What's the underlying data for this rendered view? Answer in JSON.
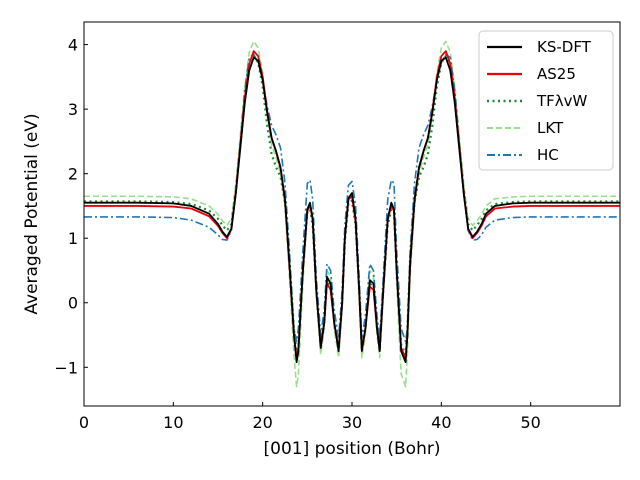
{
  "chart_data": {
    "type": "line",
    "title": "",
    "xlabel": "[001] position (Bohr)",
    "ylabel": "Averaged Potential (eV)",
    "xlim": [
      0,
      60
    ],
    "ylim": [
      -1.6,
      4.35
    ],
    "xticks": [
      0,
      10,
      20,
      30,
      40,
      50
    ],
    "yticks": [
      -1,
      0,
      1,
      2,
      3,
      4
    ],
    "xtick_labels": [
      "0",
      "10",
      "20",
      "30",
      "40",
      "50"
    ],
    "ytick_labels": [
      "−1",
      "0",
      "1",
      "2",
      "3",
      "4"
    ],
    "grid": false,
    "legend_position": "top-right",
    "series": [
      {
        "name": "KS-DFT",
        "color": "#000000",
        "style": "solid",
        "x": [
          0,
          6,
          10,
          12,
          14,
          15,
          15.5,
          16,
          16.5,
          17,
          17.5,
          18,
          18.5,
          19,
          19.5,
          20,
          20.5,
          21,
          21.5,
          22,
          22.5,
          23,
          23.5,
          23.8,
          24,
          24.5,
          25,
          25.3,
          25.6,
          26,
          26.5,
          26.9,
          27.2,
          27.6,
          28,
          28.5,
          28.9,
          29.2,
          29.6,
          30,
          30.4,
          30.8,
          31.1,
          31.5,
          32,
          32.4,
          32.8,
          33.1,
          33.5,
          34,
          34.4,
          34.7,
          35,
          35.5,
          36,
          36.2,
          36.5,
          37,
          37.5,
          38,
          38.5,
          39,
          39.5,
          40,
          40.5,
          41,
          41.5,
          42,
          42.5,
          43,
          43.5,
          44,
          44.5,
          45,
          46,
          48,
          50,
          54,
          60
        ],
        "y": [
          1.55,
          1.55,
          1.54,
          1.5,
          1.38,
          1.22,
          1.1,
          1.02,
          1.15,
          1.7,
          2.4,
          3.1,
          3.6,
          3.8,
          3.75,
          3.45,
          2.95,
          2.55,
          2.35,
          2.1,
          1.6,
          0.6,
          -0.5,
          -0.92,
          -0.75,
          0.5,
          1.45,
          1.55,
          1.3,
          0.2,
          -0.7,
          -0.3,
          0.4,
          0.3,
          -0.3,
          -0.75,
          0,
          1.0,
          1.62,
          1.7,
          1.3,
          0.2,
          -0.75,
          -0.4,
          0.35,
          0.3,
          -0.4,
          -0.75,
          0.2,
          1.3,
          1.55,
          1.45,
          0.5,
          -0.75,
          -0.92,
          -0.5,
          0.6,
          1.6,
          2.1,
          2.35,
          2.55,
          2.95,
          3.45,
          3.75,
          3.8,
          3.6,
          3.1,
          2.4,
          1.7,
          1.15,
          1.02,
          1.1,
          1.22,
          1.38,
          1.5,
          1.54,
          1.55,
          1.55,
          1.55
        ]
      },
      {
        "name": "AS25",
        "color": "#e8000b",
        "style": "solid",
        "x": [
          0,
          6,
          10,
          12,
          14,
          15,
          15.5,
          16,
          16.5,
          17,
          17.5,
          18,
          18.5,
          19,
          19.5,
          20,
          20.5,
          21,
          21.5,
          22,
          22.5,
          23,
          23.5,
          23.8,
          24,
          24.5,
          25,
          25.3,
          25.6,
          26,
          26.5,
          26.9,
          27.2,
          27.6,
          28,
          28.5,
          28.9,
          29.2,
          29.6,
          30,
          30.4,
          30.8,
          31.1,
          31.5,
          32,
          32.4,
          32.8,
          33.1,
          33.5,
          34,
          34.4,
          34.7,
          35,
          35.5,
          36,
          36.2,
          36.5,
          37,
          37.5,
          38,
          38.5,
          39,
          39.5,
          40,
          40.5,
          41,
          41.5,
          42,
          42.5,
          43,
          43.5,
          44,
          44.5,
          45,
          46,
          48,
          50,
          54,
          60
        ],
        "y": [
          1.5,
          1.5,
          1.49,
          1.46,
          1.34,
          1.19,
          1.08,
          1.0,
          1.14,
          1.72,
          2.45,
          3.18,
          3.7,
          3.9,
          3.82,
          3.5,
          2.98,
          2.56,
          2.34,
          2.08,
          1.58,
          0.55,
          -0.5,
          -0.85,
          -0.7,
          0.5,
          1.42,
          1.52,
          1.28,
          0.2,
          -0.7,
          -0.3,
          0.3,
          0.2,
          -0.3,
          -0.72,
          0,
          1.0,
          1.6,
          1.65,
          1.25,
          0.2,
          -0.72,
          -0.4,
          0.25,
          0.2,
          -0.4,
          -0.72,
          0.2,
          1.28,
          1.52,
          1.42,
          0.5,
          -0.7,
          -0.85,
          -0.5,
          0.55,
          1.58,
          2.08,
          2.34,
          2.56,
          2.98,
          3.5,
          3.82,
          3.9,
          3.7,
          3.18,
          2.45,
          1.72,
          1.14,
          1.0,
          1.08,
          1.19,
          1.34,
          1.46,
          1.49,
          1.5,
          1.5,
          1.5
        ]
      },
      {
        "name": "TFλvW",
        "color": "#1a8a36",
        "style": "dotted",
        "x": [
          0,
          6,
          10,
          12,
          14,
          15,
          15.5,
          16,
          16.5,
          17,
          17.5,
          18,
          18.5,
          19,
          19.5,
          20,
          20.5,
          21,
          21.5,
          22,
          22.5,
          23,
          23.5,
          23.8,
          24,
          24.5,
          25,
          25.3,
          25.6,
          26,
          26.5,
          26.9,
          27.2,
          27.6,
          28,
          28.5,
          28.9,
          29.2,
          29.6,
          30,
          30.4,
          30.8,
          31.1,
          31.5,
          32,
          32.4,
          32.8,
          33.1,
          33.5,
          34,
          34.4,
          34.7,
          35,
          35.5,
          36,
          36.2,
          36.5,
          37,
          37.5,
          38,
          38.5,
          39,
          39.5,
          40,
          40.5,
          41,
          41.5,
          42,
          42.5,
          43,
          43.5,
          44,
          44.5,
          45,
          46,
          48,
          50,
          54,
          60
        ],
        "y": [
          1.57,
          1.57,
          1.56,
          1.53,
          1.43,
          1.3,
          1.2,
          1.12,
          1.22,
          1.75,
          2.45,
          3.15,
          3.65,
          3.82,
          3.72,
          3.35,
          2.75,
          2.3,
          2.1,
          1.95,
          1.55,
          0.65,
          -0.4,
          -0.8,
          -0.65,
          0.5,
          1.4,
          1.45,
          1.2,
          0.2,
          -0.65,
          -0.3,
          0.35,
          0.25,
          -0.3,
          -0.7,
          0,
          0.95,
          1.55,
          1.58,
          1.2,
          0.2,
          -0.7,
          -0.4,
          0.3,
          0.25,
          -0.4,
          -0.7,
          0.2,
          1.2,
          1.45,
          1.4,
          0.5,
          -0.65,
          -0.8,
          -0.4,
          0.65,
          1.55,
          1.95,
          2.1,
          2.3,
          2.75,
          3.35,
          3.72,
          3.82,
          3.65,
          3.15,
          2.45,
          1.75,
          1.22,
          1.12,
          1.2,
          1.3,
          1.43,
          1.53,
          1.56,
          1.57,
          1.57,
          1.57
        ]
      },
      {
        "name": "LKT",
        "color": "#98df8a",
        "style": "dashed",
        "x": [
          0,
          6,
          10,
          12,
          14,
          15,
          15.5,
          16,
          16.5,
          17,
          17.5,
          18,
          18.5,
          19,
          19.5,
          20,
          20.5,
          21,
          21.5,
          22,
          22.5,
          23,
          23.5,
          23.8,
          24,
          24.5,
          25,
          25.3,
          25.6,
          26,
          26.5,
          26.9,
          27.2,
          27.6,
          28,
          28.5,
          28.9,
          29.2,
          29.6,
          30,
          30.4,
          30.8,
          31.1,
          31.5,
          32,
          32.4,
          32.8,
          33.1,
          33.5,
          34,
          34.4,
          34.7,
          35,
          35.5,
          36,
          36.2,
          36.5,
          37,
          37.5,
          38,
          38.5,
          39,
          39.5,
          40,
          40.5,
          41,
          41.5,
          42,
          42.5,
          43,
          43.5,
          44,
          44.5,
          45,
          46,
          48,
          50,
          54,
          60
        ],
        "y": [
          1.65,
          1.65,
          1.64,
          1.61,
          1.5,
          1.37,
          1.27,
          1.2,
          1.3,
          1.85,
          2.6,
          3.35,
          3.88,
          4.05,
          3.95,
          3.55,
          2.92,
          2.45,
          2.25,
          2.0,
          1.5,
          0.4,
          -0.8,
          -1.3,
          -1.1,
          0.3,
          1.45,
          1.52,
          1.25,
          0.1,
          -0.8,
          -0.4,
          0.5,
          0.4,
          -0.4,
          -0.85,
          -0.1,
          0.95,
          1.62,
          1.7,
          1.3,
          0.1,
          -0.85,
          -0.5,
          0.5,
          0.4,
          -0.5,
          -0.85,
          0.1,
          1.25,
          1.52,
          1.45,
          0.3,
          -1.1,
          -1.3,
          -0.8,
          0.4,
          1.5,
          2.0,
          2.25,
          2.45,
          2.92,
          3.55,
          3.95,
          4.05,
          3.88,
          3.35,
          2.6,
          1.85,
          1.3,
          1.2,
          1.27,
          1.37,
          1.5,
          1.61,
          1.64,
          1.65,
          1.65,
          1.65
        ]
      },
      {
        "name": "HC",
        "color": "#1f77b4",
        "style": "dashdot",
        "x": [
          0,
          6,
          10,
          12,
          14,
          15,
          15.5,
          16,
          16.5,
          17,
          17.5,
          18,
          18.5,
          19,
          19.5,
          20,
          20.5,
          21,
          21.5,
          22,
          22.5,
          23,
          23.5,
          23.8,
          24,
          24.5,
          25,
          25.3,
          25.6,
          26,
          26.5,
          26.9,
          27.2,
          27.6,
          28,
          28.5,
          28.9,
          29.2,
          29.6,
          30,
          30.4,
          30.8,
          31.1,
          31.5,
          32,
          32.4,
          32.8,
          33.1,
          33.5,
          34,
          34.4,
          34.7,
          35,
          35.5,
          36,
          36.2,
          36.5,
          37,
          37.5,
          38,
          38.5,
          39,
          39.5,
          40,
          40.5,
          41,
          41.5,
          42,
          42.5,
          43,
          43.5,
          44,
          44.5,
          45,
          46,
          48,
          50,
          54,
          60
        ],
        "y": [
          1.33,
          1.33,
          1.32,
          1.28,
          1.17,
          1.05,
          0.98,
          0.97,
          1.12,
          1.7,
          2.5,
          3.3,
          3.8,
          3.85,
          3.72,
          3.45,
          3.05,
          2.75,
          2.6,
          2.4,
          1.85,
          0.8,
          -0.4,
          -0.6,
          -0.4,
          0.8,
          1.85,
          1.9,
          1.6,
          0.4,
          -0.5,
          -0.1,
          0.6,
          0.5,
          -0.1,
          -0.55,
          0.2,
          1.2,
          1.82,
          1.88,
          1.5,
          0.4,
          -0.55,
          -0.2,
          0.6,
          0.5,
          -0.2,
          -0.55,
          0.4,
          1.6,
          1.9,
          1.85,
          0.8,
          -0.4,
          -0.6,
          -0.4,
          0.8,
          1.85,
          2.4,
          2.6,
          2.75,
          3.05,
          3.45,
          3.72,
          3.85,
          3.8,
          3.3,
          2.5,
          1.7,
          1.12,
          0.97,
          0.98,
          1.05,
          1.17,
          1.28,
          1.32,
          1.33,
          1.33,
          1.33
        ]
      }
    ]
  }
}
